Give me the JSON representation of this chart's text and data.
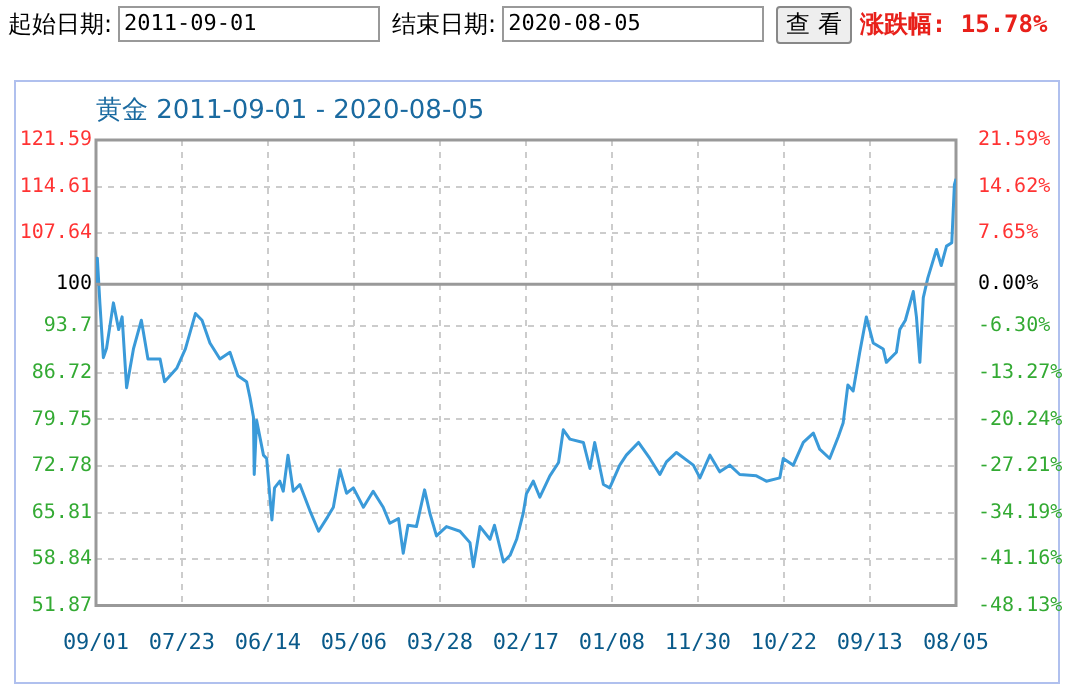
{
  "chart_data": {
    "type": "line",
    "title": "黄金 2011-09-01 - 2020-08-05",
    "annotations": [
      "起始日期:",
      "2011-09-01",
      "结束日期:",
      "2020-08-05",
      "查 看",
      "涨跌幅: 15.78%"
    ],
    "x": [
      "2011-09-01",
      "2011-09-06",
      "2011-09-16",
      "2011-09-29",
      "2011-10-11",
      "2011-11-06",
      "2011-11-26",
      "2011-12-09",
      "2011-12-26",
      "2012-01-21",
      "2012-02-20",
      "2012-03-16",
      "2012-05-01",
      "2012-05-18",
      "2012-07-03",
      "2012-08-05",
      "2012-09-12",
      "2012-10-07",
      "2012-11-06",
      "2012-12-14",
      "2013-01-21",
      "2013-02-20",
      "2013-03-25",
      "2013-04-07",
      "2013-04-20",
      "2013-04-23",
      "2013-05-02",
      "2013-05-28",
      "2013-06-09",
      "2013-06-29",
      "2013-07-09",
      "2013-07-29",
      "2013-08-11",
      "2013-08-29",
      "2013-09-18",
      "2013-10-13",
      "2013-11-20",
      "2013-12-23",
      "2014-01-27",
      "2014-02-17",
      "2014-03-14",
      "2014-04-08",
      "2014-05-04",
      "2014-06-11",
      "2014-07-18",
      "2014-08-25",
      "2014-09-19",
      "2014-10-22",
      "2014-11-09",
      "2014-11-27",
      "2014-12-29",
      "2015-01-29",
      "2015-02-18",
      "2015-03-15",
      "2015-04-22",
      "2015-06-12",
      "2015-07-20",
      "2015-08-02",
      "2015-08-27",
      "2015-10-04",
      "2015-10-21",
      "2015-11-24",
      "2015-12-19",
      "2016-01-13",
      "2016-02-07",
      "2016-02-19",
      "2016-03-16",
      "2016-04-10",
      "2016-05-18",
      "2016-06-20",
      "2016-07-08",
      "2016-08-02",
      "2016-09-22",
      "2016-10-17",
      "2016-11-04",
      "2016-12-07",
      "2016-12-31",
      "2017-02-07",
      "2017-03-04",
      "2017-04-19",
      "2017-06-01",
      "2017-07-09",
      "2017-08-03",
      "2017-09-10",
      "2017-11-13",
      "2017-12-08",
      "2018-01-15",
      "2018-02-21",
      "2018-03-31",
      "2018-05-08",
      "2018-07-10",
      "2018-08-17",
      "2018-10-07",
      "2018-10-20",
      "2018-11-27",
      "2019-01-04",
      "2019-02-11",
      "2019-03-07",
      "2019-04-14",
      "2019-05-17",
      "2019-06-04",
      "2019-06-22",
      "2019-07-12",
      "2019-08-06",
      "2019-08-31",
      "2019-09-26",
      "2019-11-03",
      "2019-11-15",
      "2019-12-23",
      "2020-01-05",
      "2020-01-26",
      "2020-02-25",
      "2020-03-08",
      "2020-03-21",
      "2020-04-03",
      "2020-04-20",
      "2020-05-23",
      "2020-06-10",
      "2020-06-30",
      "2020-07-20",
      "2020-07-30",
      "2020-08-05"
    ],
    "series": [
      {
        "color": "#3a9ad9",
        "values": [
          100,
          103.9,
          97.0,
          89.0,
          90.4,
          97.2,
          93.2,
          95.1,
          84.5,
          90.3,
          94.6,
          88.8,
          88.8,
          85.4,
          87.4,
          90.3,
          95.6,
          94.6,
          91.2,
          88.8,
          89.8,
          86.3,
          85.4,
          83.0,
          80.1,
          71.5,
          79.6,
          74.4,
          73.9,
          64.7,
          69.5,
          70.5,
          69.0,
          74.4,
          69.0,
          70.0,
          66.1,
          63.0,
          65.2,
          66.6,
          72.2,
          68.7,
          69.5,
          66.6,
          69.0,
          66.6,
          64.2,
          64.9,
          59.7,
          63.9,
          63.7,
          69.2,
          65.7,
          62.3,
          63.7,
          63.0,
          61.3,
          57.7,
          63.7,
          61.8,
          63.9,
          58.4,
          59.4,
          61.8,
          65.7,
          68.6,
          70.5,
          68.1,
          71.3,
          73.3,
          78.2,
          76.8,
          76.3,
          72.4,
          76.3,
          70.0,
          69.5,
          72.9,
          74.4,
          76.3,
          73.9,
          71.5,
          73.4,
          74.8,
          72.9,
          71.0,
          74.4,
          71.9,
          72.9,
          71.5,
          71.3,
          70.5,
          71.0,
          73.9,
          72.9,
          76.3,
          77.7,
          75.3,
          73.9,
          77.2,
          79.2,
          84.9,
          84.0,
          89.8,
          95.1,
          91.2,
          90.3,
          88.3,
          89.8,
          93.2,
          94.6,
          98.9,
          95.1,
          88.3,
          98.0,
          100.9,
          105.2,
          102.8,
          105.7,
          106.2,
          114.9,
          115.78
        ]
      }
    ],
    "xlim": [
      "2011-09-01",
      "2020-08-05"
    ],
    "xticks": [
      {
        "value": "2011-09-01",
        "label": "09/01"
      },
      {
        "value": "2012-07-23",
        "label": "07/23"
      },
      {
        "value": "2013-06-14",
        "label": "06/14"
      },
      {
        "value": "2014-05-06",
        "label": "05/06"
      },
      {
        "value": "2015-03-28",
        "label": "03/28"
      },
      {
        "value": "2016-02-17",
        "label": "02/17"
      },
      {
        "value": "2017-01-08",
        "label": "01/08"
      },
      {
        "value": "2017-11-30",
        "label": "11/30"
      },
      {
        "value": "2018-10-22",
        "label": "10/22"
      },
      {
        "value": "2019-09-13",
        "label": "09/13"
      },
      {
        "value": "2020-08-05",
        "label": "08/05"
      }
    ],
    "ylim": [
      51.87,
      121.59
    ],
    "yticks": [
      51.87,
      58.84,
      65.81,
      72.78,
      79.75,
      86.72,
      93.7,
      100,
      107.64,
      114.61,
      121.59
    ],
    "y2lim": [
      -48.13,
      21.59
    ],
    "y2ticks": [
      {
        "value": -48.13,
        "label": "-48.13%"
      },
      {
        "value": -41.16,
        "label": "-41.16%"
      },
      {
        "value": -34.19,
        "label": "-34.19%"
      },
      {
        "value": -27.21,
        "label": "-27.21%"
      },
      {
        "value": -20.24,
        "label": "-20.24%"
      },
      {
        "value": -13.27,
        "label": "-13.27%"
      },
      {
        "value": -6.3,
        "label": "-6.30%"
      },
      {
        "value": 0,
        "label": "0.00%"
      },
      {
        "value": 7.65,
        "label": "7.65%"
      },
      {
        "value": 14.62,
        "label": "14.62%"
      },
      {
        "value": 21.59,
        "label": "21.59%"
      }
    ],
    "ref_lines": [
      {
        "axis": "y",
        "value": 100,
        "color": "#999999"
      }
    ],
    "grid": true,
    "legend": false,
    "marker": "none",
    "line_style": "solid"
  }
}
